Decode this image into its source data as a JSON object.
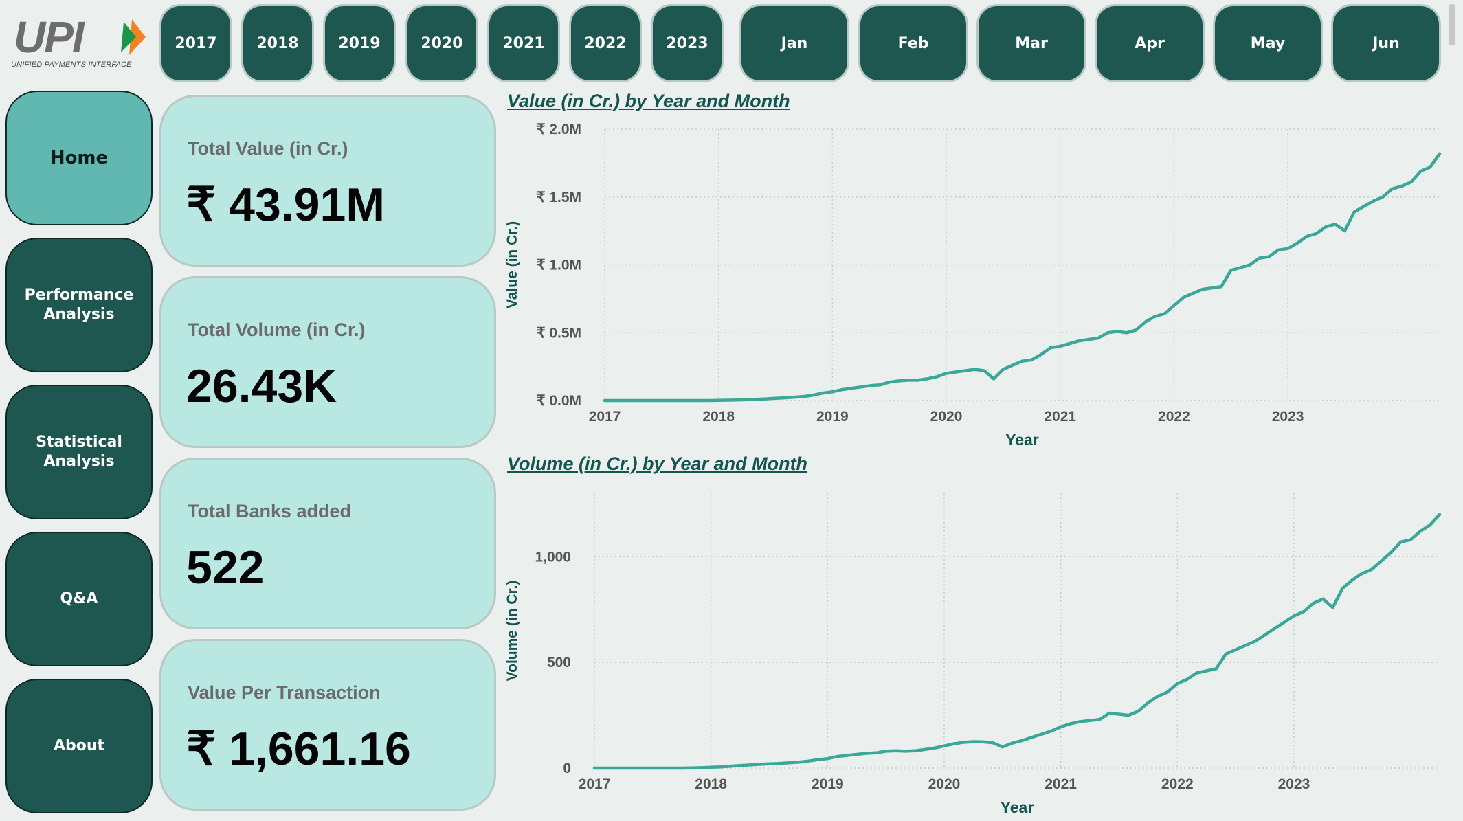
{
  "logo": {
    "mark": "UPI",
    "subtitle": "UNIFIED PAYMENTS INTERFACE"
  },
  "year_slicers": [
    "2017",
    "2018",
    "2019",
    "2020",
    "2021",
    "2022",
    "2023"
  ],
  "month_slicers": [
    "Jan",
    "Feb",
    "Mar",
    "Apr",
    "May",
    "Jun"
  ],
  "nav": [
    "Home",
    "Performance\nAnalysis",
    "Statistical\nAnalysis",
    "Q&A",
    "About"
  ],
  "nav_active": 0,
  "kpis": [
    {
      "label": "Total Value (in Cr.)",
      "value": "₹ 43.91M"
    },
    {
      "label": "Total Volume (in Cr.)",
      "value": "26.43K"
    },
    {
      "label": "Total Banks added",
      "value": "522"
    },
    {
      "label": "Value Per Transaction",
      "value": "₹ 1,661.16"
    }
  ],
  "colors": {
    "accent": "#1e5650",
    "line": "#3aa898",
    "card": "#b9e7e2",
    "active_nav": "#60b8b0"
  },
  "chart_data": [
    {
      "type": "line",
      "title": "Value (in Cr.) by Year and Month",
      "xlabel": "Year",
      "ylabel": "Value (in Cr.)",
      "xticks": [
        "2017",
        "2018",
        "2019",
        "2020",
        "2021",
        "2022",
        "2023"
      ],
      "yticks": [
        "₹ 0.0M",
        "₹ 0.5M",
        "₹ 1.0M",
        "₹ 1.5M",
        "₹ 2.0M"
      ],
      "ylim": [
        0,
        2000000
      ],
      "x_start": "2017-01",
      "x_step": "month",
      "values": [
        0,
        0,
        0,
        0,
        0,
        0,
        0,
        0,
        0,
        0,
        0,
        0,
        1500,
        2500,
        4000,
        6000,
        9000,
        12000,
        16000,
        20000,
        25000,
        30000,
        40000,
        55000,
        65000,
        80000,
        90000,
        100000,
        110000,
        115000,
        135000,
        145000,
        150000,
        150000,
        160000,
        175000,
        200000,
        210000,
        220000,
        230000,
        220000,
        160000,
        230000,
        260000,
        290000,
        300000,
        340000,
        390000,
        400000,
        420000,
        440000,
        450000,
        460000,
        500000,
        510000,
        500000,
        520000,
        580000,
        620000,
        640000,
        700000,
        760000,
        790000,
        820000,
        830000,
        840000,
        960000,
        980000,
        1000000,
        1050000,
        1060000,
        1110000,
        1120000,
        1160000,
        1210000,
        1230000,
        1280000,
        1300000,
        1250000,
        1390000,
        1430000,
        1470000,
        1500000,
        1560000,
        1580000,
        1610000,
        1690000,
        1720000,
        1820000
      ]
    },
    {
      "type": "line",
      "title": "Volume (in Cr.) by Year and Month",
      "xlabel": "Year",
      "ylabel": "Volume (in Cr.)",
      "xticks": [
        "2017",
        "2018",
        "2019",
        "2020",
        "2021",
        "2022",
        "2023"
      ],
      "yticks": [
        "0",
        "500",
        "1,000"
      ],
      "ylim": [
        0,
        1300
      ],
      "x_start": "2017-01",
      "x_step": "month",
      "values": [
        0,
        0,
        0,
        0,
        0,
        0,
        0,
        0,
        0,
        0,
        1,
        2,
        4,
        6,
        9,
        12,
        15,
        18,
        20,
        22,
        25,
        28,
        33,
        40,
        45,
        55,
        60,
        65,
        70,
        72,
        80,
        82,
        80,
        82,
        88,
        95,
        105,
        115,
        122,
        125,
        124,
        120,
        100,
        118,
        130,
        145,
        160,
        175,
        195,
        210,
        220,
        225,
        230,
        260,
        255,
        250,
        270,
        310,
        340,
        360,
        400,
        420,
        450,
        460,
        470,
        540,
        560,
        580,
        600,
        630,
        660,
        690,
        720,
        740,
        780,
        800,
        760,
        850,
        890,
        920,
        940,
        980,
        1020,
        1070,
        1080,
        1120,
        1150,
        1200
      ]
    }
  ]
}
